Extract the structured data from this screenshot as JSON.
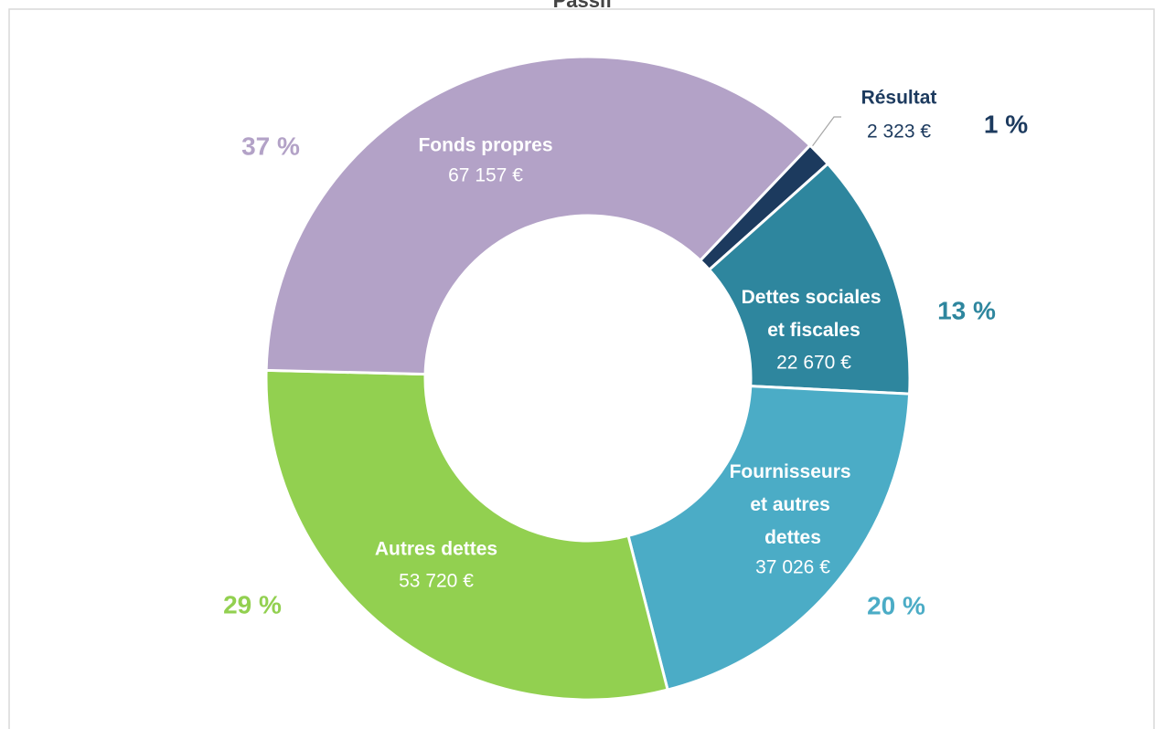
{
  "chart_data": {
    "type": "donut",
    "title": "Passif",
    "categories": [
      "Résultat",
      "Dettes sociales et fiscales",
      "Fournisseurs et autres dettes",
      "Autres dettes",
      "Fonds propres"
    ],
    "values": [
      2323,
      22670,
      37026,
      53720,
      67157
    ],
    "value_labels": [
      "2 323 €",
      "22 670 €",
      "37 026 €",
      "53 720 €",
      "67 157 €"
    ],
    "percents": [
      1,
      13,
      20,
      29,
      37
    ],
    "percent_labels": [
      "1 %",
      "13 %",
      "20 %",
      "29 %",
      "37 %"
    ],
    "colors": [
      "#1c3a5e",
      "#2e869e",
      "#4bacc6",
      "#92d050",
      "#b3a2c7"
    ]
  }
}
